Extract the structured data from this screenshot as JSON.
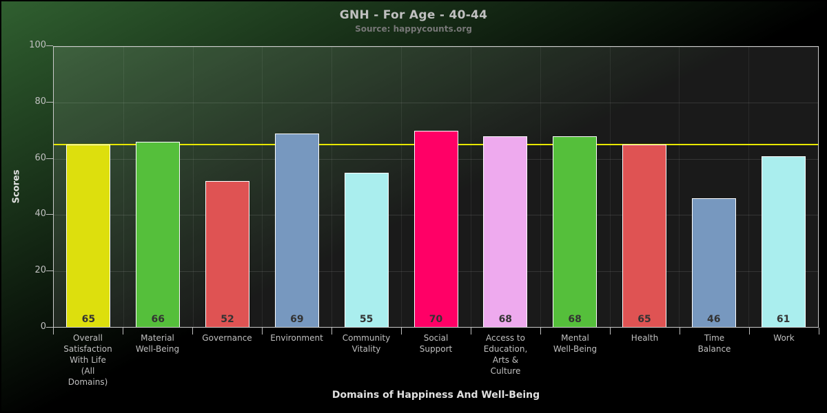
{
  "chart_data": {
    "type": "bar",
    "title": "GNH - For Age - 40-44",
    "subtitle": "Source: happycounts.org",
    "xlabel": "Domains of Happiness And Well-Being",
    "ylabel": "Scores",
    "ylim": [
      0,
      100
    ],
    "yticks": [
      0,
      20,
      40,
      60,
      80,
      100
    ],
    "grid": "on",
    "legend": "none",
    "plotline": {
      "value": 65,
      "color": "#E8E800"
    },
    "categories": [
      "Overall\nSatisfaction\nWith Life\n(All\nDomains)",
      "Material\nWell-Being",
      "Governance",
      "Environment",
      "Community\nVitality",
      "Social\nSupport",
      "Access to\nEducation,\nArts &\nCulture",
      "Mental\nWell-Being",
      "Health",
      "Time\nBalance",
      "Work"
    ],
    "values": [
      65,
      66,
      52,
      69,
      55,
      70,
      68,
      68,
      65,
      46,
      61
    ],
    "bar_colors": [
      "#DDDF0D",
      "#55BF3B",
      "#DF5353",
      "#7798BF",
      "#AAEEEE",
      "#FF0066",
      "#EEAAEE",
      "#55BF3B",
      "#DF5353",
      "#7798BF",
      "#AAEEEE"
    ]
  },
  "theme": {
    "background_gradient_start": "#306030",
    "background_gradient_end": "#000000",
    "plot_overlay": "rgba(255,255,255,0.10)",
    "plot_border": "#CCCCCC",
    "grid_color": "rgba(255,255,255,0.12)",
    "grid_color_vertical": "rgba(255,255,255,0.07)",
    "tick_color": "#C0C0C0",
    "title_color": "#C0C0C0",
    "subtitle_color": "#777777",
    "label_color": "#C0C0C0",
    "axis_title_color": "#E0E0E0",
    "value_label_color": "#333333",
    "bar_border": "#FFFFFF"
  }
}
